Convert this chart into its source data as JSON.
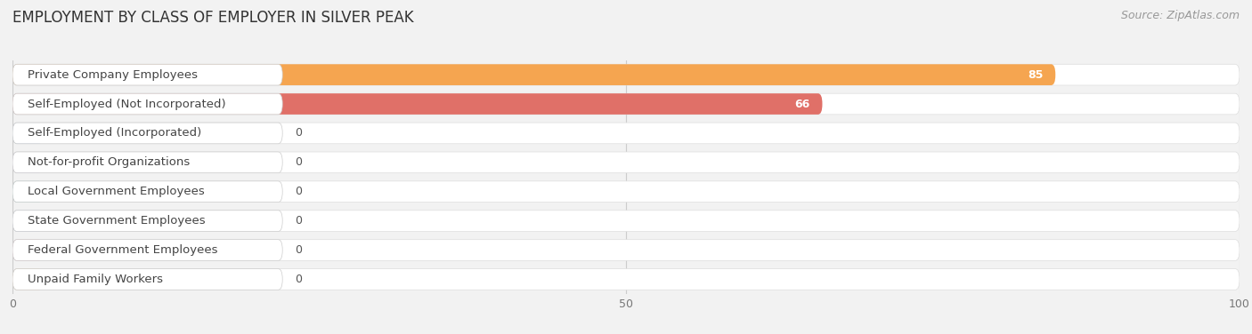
{
  "title": "EMPLOYMENT BY CLASS OF EMPLOYER IN SILVER PEAK",
  "source": "Source: ZipAtlas.com",
  "categories": [
    "Private Company Employees",
    "Self-Employed (Not Incorporated)",
    "Self-Employed (Incorporated)",
    "Not-for-profit Organizations",
    "Local Government Employees",
    "State Government Employees",
    "Federal Government Employees",
    "Unpaid Family Workers"
  ],
  "values": [
    85,
    66,
    0,
    0,
    0,
    0,
    0,
    0
  ],
  "bar_colors": [
    "#F5A550",
    "#E07068",
    "#9BBBD8",
    "#B8A8CF",
    "#6DBFB8",
    "#AABAE0",
    "#F0A0B8",
    "#F5C890"
  ],
  "xlim": [
    0,
    100
  ],
  "xticks": [
    0,
    50,
    100
  ],
  "bg_color": "#f2f2f2",
  "bar_bg_color": "#ffffff",
  "title_fontsize": 12,
  "label_fontsize": 9.5,
  "value_fontsize": 9,
  "source_fontsize": 9
}
